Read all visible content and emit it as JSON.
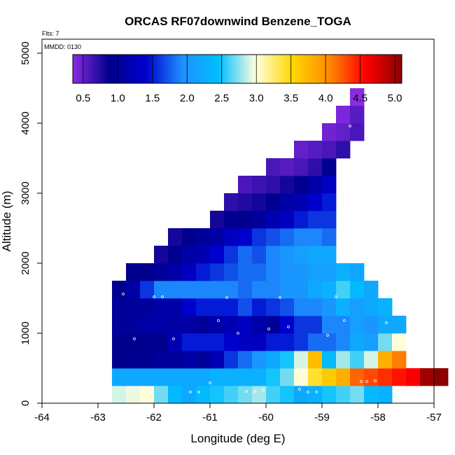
{
  "chart_data": {
    "type": "heatmap",
    "title": "ORCAS RF07downwind Benzene_TOGA",
    "flights_note": "Flts: 7",
    "date_note": "MMDD: 0130",
    "xlabel": "Longitude (deg E)",
    "ylabel": "Altitude (m)",
    "xlim": [
      -64,
      -57
    ],
    "ylim": [
      0,
      5200
    ],
    "x_ticks": [
      -64,
      -63,
      -62,
      -61,
      -60,
      -59,
      -58,
      -57
    ],
    "x_tick_labels": [
      "-64",
      "-63",
      "-62",
      "-61",
      "-60",
      "-59",
      "-58",
      "-57"
    ],
    "y_ticks": [
      0,
      1000,
      2000,
      3000,
      4000,
      5000
    ],
    "y_tick_labels": [
      "0",
      "1000",
      "2000",
      "3000",
      "4000",
      "5000"
    ],
    "grid": false,
    "colorbar": {
      "range": [
        0.35,
        5.1
      ],
      "ticks": [
        0.5,
        1.0,
        1.5,
        2.0,
        2.5,
        3.0,
        3.5,
        4.0,
        4.5,
        5.0
      ],
      "tick_labels": [
        "0.5",
        "1.0",
        "1.5",
        "2.0",
        "2.5",
        "3.0",
        "3.5",
        "4.0",
        "4.5",
        "5.0"
      ],
      "colors": [
        "#8a2be2",
        "#00008b",
        "#0000cd",
        "#1e90ff",
        "#00bfff",
        "#ffffe0",
        "#ffd700",
        "#ff8c00",
        "#ff0000",
        "#8b0000"
      ],
      "placement": "top"
    },
    "grid_cells": {
      "cell_width_deg": 0.25,
      "cell_height_m": 250,
      "rows": [
        {
          "alt": 0,
          "lon0": -62.75,
          "values": [
            2.9,
            2.95,
            3.0,
            2.7,
            2.4,
            2.2,
            2.4,
            2.5,
            2.6,
            2.7,
            2.8,
            2.6,
            2.5,
            2.2,
            2.3,
            2.5,
            2.6,
            2.7,
            2.4,
            2.3
          ]
        },
        {
          "alt": 250,
          "lon0": -62.75,
          "values": [
            2.2,
            2.2,
            2.2,
            2.2,
            2.2,
            2.2,
            2.2,
            2.3,
            2.3,
            2.3,
            2.3,
            2.5,
            2.7,
            3.0,
            3.4,
            3.6,
            3.8,
            4.2,
            4.3,
            4.4,
            4.5,
            4.6,
            5.0,
            5.1
          ]
        },
        {
          "alt": 500,
          "lon0": -62.75,
          "values": [
            0.9,
            0.9,
            0.9,
            1.0,
            1.0,
            1.1,
            1.0,
            1.2,
            1.6,
            1.8,
            2.0,
            2.2,
            2.5,
            2.9,
            3.7,
            2.4,
            2.8,
            2.6,
            2.9,
            3.8,
            4.1
          ]
        },
        {
          "alt": 750,
          "lon0": -62.75,
          "values": [
            0.9,
            0.9,
            0.9,
            0.9,
            1.2,
            1.5,
            1.5,
            1.5,
            1.4,
            1.3,
            1.3,
            1.5,
            1.5,
            1.6,
            1.8,
            1.8,
            1.9,
            2.2,
            2.1,
            2.7,
            3.0
          ]
        },
        {
          "alt": 1000,
          "lon0": -62.75,
          "values": [
            1.0,
            1.0,
            1.1,
            1.1,
            1.1,
            1.1,
            1.0,
            1.1,
            1.2,
            1.3,
            1.1,
            1.0,
            1.4,
            1.6,
            1.6,
            1.9,
            1.9,
            2.1,
            2.0,
            2.2,
            2.2
          ]
        },
        {
          "alt": 1250,
          "lon0": -62.75,
          "values": [
            1.0,
            1.0,
            1.0,
            1.1,
            1.1,
            1.4,
            1.5,
            1.5,
            1.5,
            1.7,
            1.5,
            1.6,
            1.7,
            1.9,
            1.9,
            2.0,
            2.3,
            2.1,
            2.2,
            2.3
          ]
        },
        {
          "alt": 1500,
          "lon0": -62.75,
          "values": [
            0.9,
            1.1,
            1.6,
            1.9,
            1.9,
            1.9,
            1.9,
            1.9,
            1.9,
            1.8,
            1.9,
            1.9,
            2.0,
            2.0,
            2.2,
            2.3,
            2.6,
            2.4,
            2.2
          ]
        },
        {
          "alt": 1750,
          "lon0": -62.5,
          "values": [
            0.9,
            0.9,
            1.0,
            1.1,
            1.3,
            1.5,
            1.6,
            1.7,
            1.8,
            1.8,
            1.9,
            2.0,
            2.0,
            2.1,
            2.1,
            2.3,
            2.2
          ]
        },
        {
          "alt": 2000,
          "lon0": -62.0,
          "values": [
            0.8,
            0.9,
            1.1,
            1.2,
            1.4,
            1.6,
            1.8,
            1.7,
            1.9,
            2.0,
            2.1,
            2.2,
            2.2
          ]
        },
        {
          "alt": 2250,
          "lon0": -61.75,
          "values": [
            0.8,
            0.9,
            1.0,
            1.1,
            1.3,
            1.4,
            1.6,
            1.7,
            1.8,
            1.9,
            1.9,
            1.8
          ]
        },
        {
          "alt": 2500,
          "lon0": -61.0,
          "values": [
            0.8,
            0.9,
            0.9,
            1.0,
            1.2,
            1.3,
            1.5,
            1.6,
            1.6
          ]
        },
        {
          "alt": 2750,
          "lon0": -60.75,
          "values": [
            0.7,
            0.75,
            0.8,
            0.9,
            1.1,
            1.2,
            1.4,
            1.5
          ]
        },
        {
          "alt": 3000,
          "lon0": -60.5,
          "values": [
            0.6,
            0.65,
            0.7,
            0.8,
            0.9,
            1.1,
            1.3
          ]
        },
        {
          "alt": 3250,
          "lon0": -60.0,
          "values": [
            0.6,
            0.55,
            0.6,
            0.7,
            0.9
          ]
        },
        {
          "alt": 3500,
          "lon0": -59.5,
          "values": [
            0.5,
            0.55,
            0.6,
            0.7
          ]
        },
        {
          "alt": 3750,
          "lon0": -59.0,
          "values": [
            0.45,
            0.5,
            0.6
          ]
        },
        {
          "alt": 4000,
          "lon0": -58.75,
          "values": [
            0.4,
            0.55
          ]
        },
        {
          "alt": 4250,
          "lon0": -58.5,
          "values": [
            0.35
          ]
        }
      ]
    },
    "sample_points": [
      {
        "lon": -62.95,
        "alt": 640
      },
      {
        "lon": -62.55,
        "alt": 1560
      },
      {
        "lon": -62.35,
        "alt": 920
      },
      {
        "lon": -62.0,
        "alt": 1520
      },
      {
        "lon": -61.85,
        "alt": 1520
      },
      {
        "lon": -61.65,
        "alt": 920
      },
      {
        "lon": -61.35,
        "alt": 160
      },
      {
        "lon": -61.2,
        "alt": 160
      },
      {
        "lon": -61.0,
        "alt": 290
      },
      {
        "lon": -60.85,
        "alt": 1180
      },
      {
        "lon": -60.7,
        "alt": 1510
      },
      {
        "lon": -60.5,
        "alt": 1000
      },
      {
        "lon": -60.35,
        "alt": 170
      },
      {
        "lon": -60.2,
        "alt": 170
      },
      {
        "lon": -60.05,
        "alt": 190
      },
      {
        "lon": -59.95,
        "alt": 1060
      },
      {
        "lon": -59.75,
        "alt": 1510
      },
      {
        "lon": -59.6,
        "alt": 1090
      },
      {
        "lon": -59.4,
        "alt": 200
      },
      {
        "lon": -59.25,
        "alt": 160
      },
      {
        "lon": -59.1,
        "alt": 160
      },
      {
        "lon": -58.9,
        "alt": 970
      },
      {
        "lon": -58.75,
        "alt": 1520
      },
      {
        "lon": -58.6,
        "alt": 1180
      },
      {
        "lon": -58.5,
        "alt": 3960
      },
      {
        "lon": -58.3,
        "alt": 310
      },
      {
        "lon": -58.2,
        "alt": 310
      },
      {
        "lon": -58.1,
        "alt": 2080
      },
      {
        "lon": -58.05,
        "alt": 320
      },
      {
        "lon": -57.85,
        "alt": 1150
      }
    ]
  }
}
